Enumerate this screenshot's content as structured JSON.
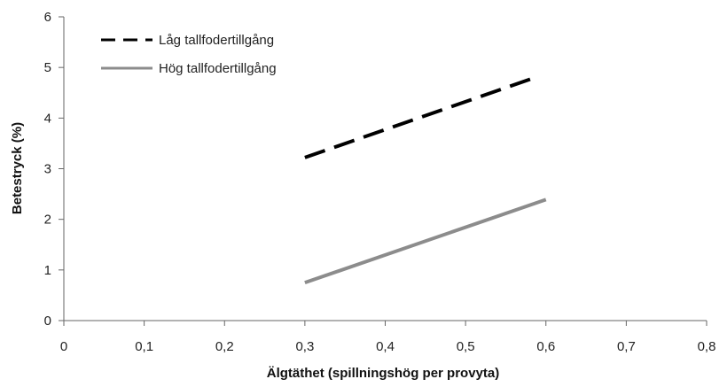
{
  "chart_data": {
    "type": "line",
    "title": "",
    "xlabel": "Älgtäthet (spillningshög per provyta)",
    "ylabel": "Betestryck (%)",
    "xlim": [
      0,
      0.8
    ],
    "ylim": [
      0,
      6
    ],
    "x_ticks": [
      0,
      0.1,
      0.2,
      0.3,
      0.4,
      0.5,
      0.6,
      0.7,
      0.8
    ],
    "x_tick_labels": [
      "0",
      "0,1",
      "0,2",
      "0,3",
      "0,4",
      "0,5",
      "0,6",
      "0,7",
      "0,8"
    ],
    "y_ticks": [
      0,
      1,
      2,
      3,
      4,
      5,
      6
    ],
    "y_tick_labels": [
      "0",
      "1",
      "2",
      "3",
      "4",
      "5",
      "6"
    ],
    "grid": false,
    "legend_position": "top-left",
    "series": [
      {
        "name": "Låg tallfodertillgång",
        "x": [
          0.3,
          0.59
        ],
        "y": [
          3.22,
          4.82
        ],
        "color": "#000000",
        "style": "dashed"
      },
      {
        "name": "Hög tallfodertillgång",
        "x": [
          0.3,
          0.6
        ],
        "y": [
          0.75,
          2.39
        ],
        "color": "#8c8c8c",
        "style": "solid"
      }
    ]
  }
}
